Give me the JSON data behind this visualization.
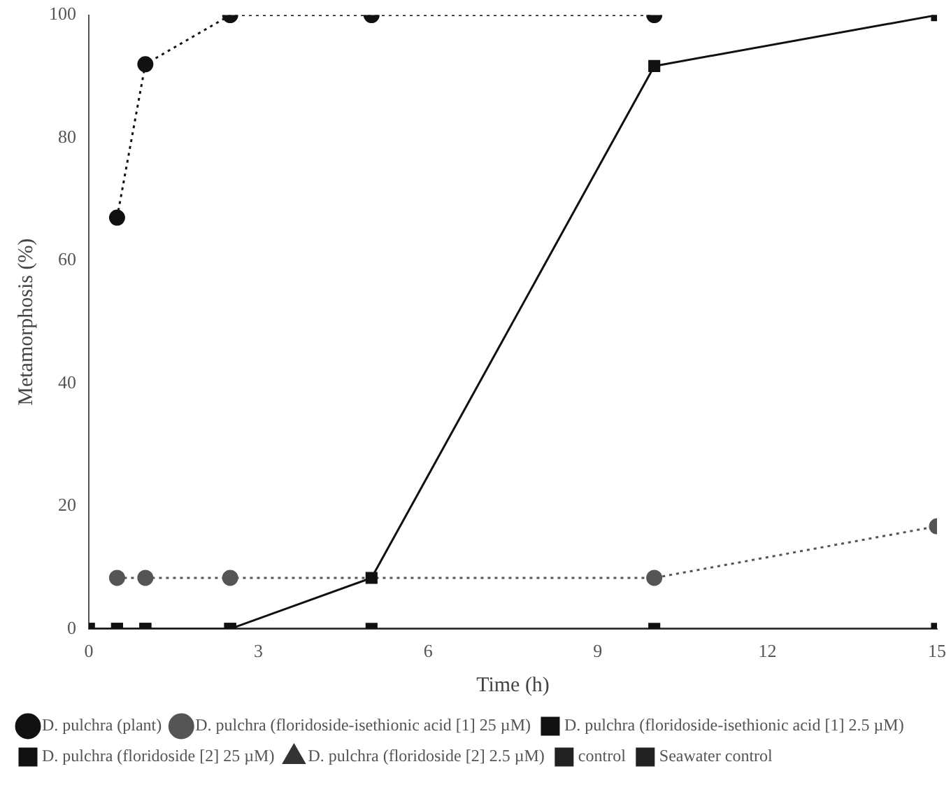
{
  "chart_data": {
    "type": "line",
    "xlabel": "Time (h)",
    "ylabel": "Metamorphosis (%)",
    "xlim": [
      0,
      15
    ],
    "xticks": [
      0,
      3,
      6,
      9,
      12,
      15
    ],
    "ylim": [
      0,
      100
    ],
    "yticks": [
      0,
      20,
      40,
      60,
      80,
      100
    ],
    "grid": false,
    "legend": "bottom",
    "x": [
      0,
      0.5,
      1,
      2.5,
      5,
      10,
      15
    ],
    "series": [
      {
        "name": "D. pulchra (plant)",
        "color": "#111111",
        "marker": "circle",
        "line_style": "dotted",
        "values": [
          null,
          67,
          92,
          100,
          100,
          100,
          null
        ]
      },
      {
        "name": "D. pulchra (floridoside-isethionic acid [1] 25 µM)",
        "color": "#555555",
        "marker": "circle",
        "line_style": "dotted",
        "values": [
          null,
          8.3,
          8.3,
          8.3,
          null,
          8.3,
          16.7
        ]
      },
      {
        "name": "D. pulchra (floridoside-isethionic acid [1] 2.5 µM)",
        "color": "#111111",
        "marker": "square",
        "line_style": "solid",
        "values": [
          0,
          0,
          0,
          0,
          8.3,
          91.7,
          100
        ]
      },
      {
        "name": "D. pulchra (floridoside [2] 25 µM)",
        "color": "#111111",
        "marker": "square",
        "line_style": "solid",
        "values": [
          0,
          0,
          0,
          0,
          0,
          0,
          0
        ]
      },
      {
        "name": "D. pulchra (floridoside [2] 2.5 µM)",
        "color": "#333333",
        "marker": "triangle",
        "line_style": "dashed",
        "values": [
          null,
          null,
          null,
          null,
          null,
          null,
          null
        ]
      },
      {
        "name": "control",
        "color": "#222222",
        "marker": "square",
        "line_style": "dashed",
        "values": [
          null,
          null,
          null,
          null,
          null,
          null,
          null
        ]
      },
      {
        "name": "Seawater control",
        "color": "#222222",
        "marker": "square",
        "line_style": "dashed",
        "values": [
          null,
          null,
          null,
          null,
          null,
          null,
          null
        ]
      }
    ]
  }
}
